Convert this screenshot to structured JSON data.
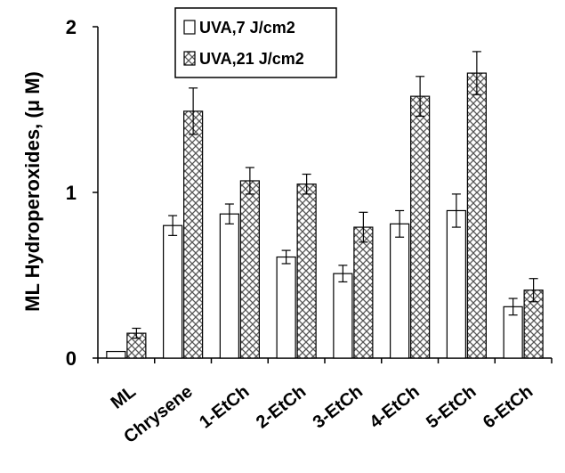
{
  "chart_data": {
    "type": "bar",
    "title": "",
    "xlabel": "",
    "ylabel": "ML Hydroperoxides, (μ M)",
    "ylim": [
      0,
      2
    ],
    "yticks": [
      "0",
      "1",
      "2"
    ],
    "categories": [
      "ML",
      "Chrysene",
      "1-EtCh",
      "2-EtCh",
      "3-EtCh",
      "4-EtCh",
      "5-EtCh",
      "6-EtCh"
    ],
    "series": [
      {
        "name": "UVA,7 J/cm2",
        "pattern": "white",
        "values": [
          0.04,
          0.8,
          0.87,
          0.61,
          0.51,
          0.81,
          0.89,
          0.31
        ],
        "errors": [
          0.0,
          0.06,
          0.06,
          0.04,
          0.05,
          0.08,
          0.1,
          0.05
        ]
      },
      {
        "name": "UVA,21 J/cm2",
        "pattern": "crosshatch",
        "values": [
          0.15,
          1.49,
          1.07,
          1.05,
          0.79,
          1.58,
          1.72,
          0.41
        ],
        "errors": [
          0.03,
          0.14,
          0.08,
          0.06,
          0.09,
          0.12,
          0.13,
          0.07
        ]
      }
    ],
    "legend": {
      "position": "top-center"
    },
    "colors": {
      "axis": "#000000",
      "bar_fill": "#ffffff",
      "hatch": "#555555"
    }
  }
}
